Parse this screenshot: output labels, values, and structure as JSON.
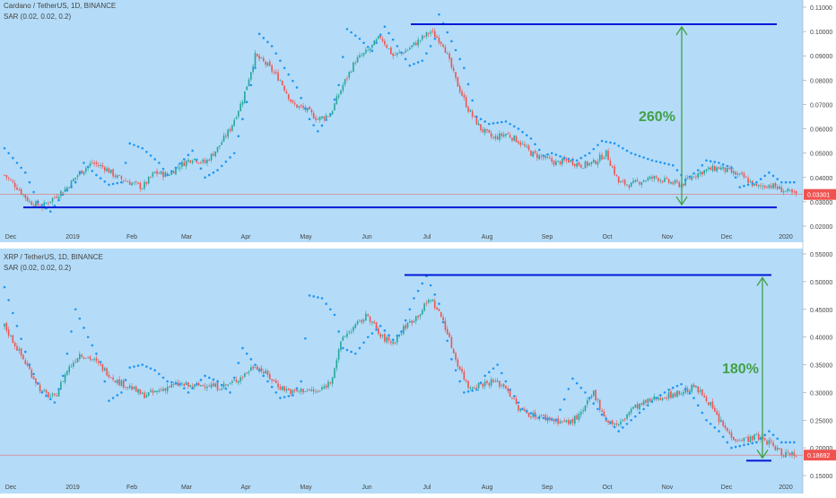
{
  "colors": {
    "panel_bg": "#b4dcf8",
    "separator": "#ffffff",
    "axis_text": "#444444",
    "up": "#26a69a",
    "down": "#ef5350",
    "sar": "#2196f3",
    "range_line": "#0018d8",
    "arrow": "#43a047",
    "price_line": "#ef5350",
    "price_badge": "#ef5350"
  },
  "time_axis": [
    "Dec",
    "2019",
    "Feb",
    "Mar",
    "Apr",
    "May",
    "Jun",
    "Jul",
    "Aug",
    "Sep",
    "Oct",
    "Nov",
    "Dec",
    "2020"
  ],
  "chart_data": [
    {
      "type": "candlestick",
      "symbol_title": "Cardano / TetherUS, 1D, BINANCE",
      "indicator": "SAR (0.02, 0.02, 0.2)",
      "y_ticks": [
        "0.11000",
        "0.10000",
        "0.09000",
        "0.08000",
        "0.07000",
        "0.06000",
        "0.05000",
        "0.04000",
        "0.03000",
        "0.02000"
      ],
      "ylim": [
        0.02,
        0.11
      ],
      "last_price": "0.03301",
      "last_price_value": 0.03301,
      "range_high": 0.103,
      "range_low": 0.0277,
      "range_label": "260%",
      "close_path": [
        [
          0,
          0.041
        ],
        [
          6,
          0.036
        ],
        [
          12,
          0.03
        ],
        [
          18,
          0.028
        ],
        [
          24,
          0.032
        ],
        [
          30,
          0.036
        ],
        [
          36,
          0.042
        ],
        [
          42,
          0.046
        ],
        [
          48,
          0.044
        ],
        [
          54,
          0.04
        ],
        [
          60,
          0.038
        ],
        [
          66,
          0.036
        ],
        [
          72,
          0.042
        ],
        [
          78,
          0.041
        ],
        [
          84,
          0.045
        ],
        [
          90,
          0.048
        ],
        [
          96,
          0.046
        ],
        [
          102,
          0.052
        ],
        [
          108,
          0.06
        ],
        [
          114,
          0.072
        ],
        [
          120,
          0.09
        ],
        [
          126,
          0.086
        ],
        [
          132,
          0.08
        ],
        [
          138,
          0.07
        ],
        [
          144,
          0.068
        ],
        [
          150,
          0.064
        ],
        [
          156,
          0.066
        ],
        [
          162,
          0.078
        ],
        [
          168,
          0.088
        ],
        [
          174,
          0.092
        ],
        [
          180,
          0.098
        ],
        [
          186,
          0.09
        ],
        [
          192,
          0.092
        ],
        [
          198,
          0.096
        ],
        [
          204,
          0.1
        ],
        [
          210,
          0.095
        ],
        [
          216,
          0.08
        ],
        [
          222,
          0.068
        ],
        [
          228,
          0.06
        ],
        [
          234,
          0.056
        ],
        [
          240,
          0.058
        ],
        [
          246,
          0.055
        ],
        [
          252,
          0.05
        ],
        [
          258,
          0.048
        ],
        [
          264,
          0.046
        ],
        [
          270,
          0.047
        ],
        [
          276,
          0.045
        ],
        [
          282,
          0.046
        ],
        [
          288,
          0.05
        ],
        [
          294,
          0.038
        ],
        [
          300,
          0.037
        ],
        [
          306,
          0.039
        ],
        [
          312,
          0.04
        ],
        [
          318,
          0.038
        ],
        [
          324,
          0.037
        ],
        [
          330,
          0.041
        ],
        [
          336,
          0.043
        ],
        [
          342,
          0.044
        ],
        [
          348,
          0.042
        ],
        [
          354,
          0.04
        ],
        [
          360,
          0.036
        ],
        [
          366,
          0.037
        ],
        [
          372,
          0.035
        ],
        [
          378,
          0.033
        ]
      ],
      "sar_path": [
        [
          0,
          0.052
        ],
        [
          10,
          0.042
        ],
        [
          16,
          0.03
        ],
        [
          22,
          0.026
        ],
        [
          28,
          0.033
        ],
        [
          34,
          0.038
        ],
        [
          38,
          0.046
        ],
        [
          44,
          0.041
        ],
        [
          50,
          0.037
        ],
        [
          56,
          0.038
        ],
        [
          60,
          0.054
        ],
        [
          66,
          0.052
        ],
        [
          74,
          0.046
        ],
        [
          78,
          0.041
        ],
        [
          82,
          0.044
        ],
        [
          90,
          0.051
        ],
        [
          96,
          0.04
        ],
        [
          102,
          0.043
        ],
        [
          110,
          0.05
        ],
        [
          114,
          0.064
        ],
        [
          120,
          0.085
        ],
        [
          122,
          0.099
        ],
        [
          128,
          0.094
        ],
        [
          134,
          0.085
        ],
        [
          140,
          0.077
        ],
        [
          146,
          0.064
        ],
        [
          150,
          0.059
        ],
        [
          156,
          0.066
        ],
        [
          160,
          0.078
        ],
        [
          164,
          0.101
        ],
        [
          170,
          0.097
        ],
        [
          176,
          0.092
        ],
        [
          182,
          0.102
        ],
        [
          188,
          0.094
        ],
        [
          194,
          0.086
        ],
        [
          200,
          0.088
        ],
        [
          206,
          0.097
        ],
        [
          208,
          0.107
        ],
        [
          214,
          0.096
        ],
        [
          220,
          0.085
        ],
        [
          226,
          0.065
        ],
        [
          232,
          0.062
        ],
        [
          240,
          0.063
        ],
        [
          246,
          0.06
        ],
        [
          252,
          0.056
        ],
        [
          258,
          0.049
        ],
        [
          262,
          0.05
        ],
        [
          268,
          0.048
        ],
        [
          274,
          0.047
        ],
        [
          280,
          0.05
        ],
        [
          286,
          0.055
        ],
        [
          292,
          0.054
        ],
        [
          300,
          0.05
        ],
        [
          310,
          0.047
        ],
        [
          320,
          0.045
        ],
        [
          326,
          0.039
        ],
        [
          332,
          0.043
        ],
        [
          336,
          0.047
        ],
        [
          342,
          0.046
        ],
        [
          348,
          0.044
        ],
        [
          352,
          0.036
        ],
        [
          360,
          0.038
        ],
        [
          366,
          0.042
        ],
        [
          372,
          0.038
        ]
      ]
    },
    {
      "type": "candlestick",
      "symbol_title": "XRP / TetherUS, 1D, BINANCE",
      "indicator": "SAR (0.02, 0.02, 0.2)",
      "y_ticks": [
        "0.55000",
        "0.50000",
        "0.45000",
        "0.40000",
        "0.35000",
        "0.30000",
        "0.25000",
        "0.20000",
        "0.15000"
      ],
      "ylim": [
        0.15,
        0.55
      ],
      "last_price": "0.18692",
      "last_price_value": 0.18692,
      "range_high": 0.512,
      "range_low": 0.177,
      "range_label": "180%",
      "close_path": [
        [
          0,
          0.42
        ],
        [
          6,
          0.38
        ],
        [
          12,
          0.34
        ],
        [
          18,
          0.3
        ],
        [
          24,
          0.29
        ],
        [
          30,
          0.34
        ],
        [
          36,
          0.37
        ],
        [
          42,
          0.36
        ],
        [
          48,
          0.34
        ],
        [
          54,
          0.32
        ],
        [
          60,
          0.31
        ],
        [
          66,
          0.295
        ],
        [
          72,
          0.3
        ],
        [
          78,
          0.31
        ],
        [
          84,
          0.315
        ],
        [
          90,
          0.31
        ],
        [
          96,
          0.315
        ],
        [
          102,
          0.31
        ],
        [
          108,
          0.315
        ],
        [
          114,
          0.33
        ],
        [
          120,
          0.35
        ],
        [
          126,
          0.33
        ],
        [
          132,
          0.31
        ],
        [
          138,
          0.3
        ],
        [
          144,
          0.305
        ],
        [
          150,
          0.3
        ],
        [
          156,
          0.32
        ],
        [
          162,
          0.4
        ],
        [
          168,
          0.42
        ],
        [
          174,
          0.44
        ],
        [
          180,
          0.4
        ],
        [
          186,
          0.39
        ],
        [
          192,
          0.42
        ],
        [
          198,
          0.44
        ],
        [
          204,
          0.47
        ],
        [
          210,
          0.43
        ],
        [
          216,
          0.36
        ],
        [
          222,
          0.31
        ],
        [
          228,
          0.315
        ],
        [
          234,
          0.32
        ],
        [
          240,
          0.31
        ],
        [
          246,
          0.27
        ],
        [
          252,
          0.26
        ],
        [
          258,
          0.255
        ],
        [
          264,
          0.25
        ],
        [
          270,
          0.245
        ],
        [
          276,
          0.26
        ],
        [
          282,
          0.3
        ],
        [
          288,
          0.25
        ],
        [
          294,
          0.24
        ],
        [
          300,
          0.27
        ],
        [
          306,
          0.28
        ],
        [
          312,
          0.29
        ],
        [
          318,
          0.295
        ],
        [
          324,
          0.3
        ],
        [
          330,
          0.31
        ],
        [
          336,
          0.29
        ],
        [
          342,
          0.25
        ],
        [
          348,
          0.22
        ],
        [
          354,
          0.215
        ],
        [
          360,
          0.22
        ],
        [
          366,
          0.21
        ],
        [
          372,
          0.19
        ]
      ],
      "sar_path": [
        [
          0,
          0.49
        ],
        [
          6,
          0.42
        ],
        [
          12,
          0.35
        ],
        [
          18,
          0.3
        ],
        [
          24,
          0.282
        ],
        [
          28,
          0.33
        ],
        [
          34,
          0.45
        ],
        [
          40,
          0.4
        ],
        [
          46,
          0.355
        ],
        [
          50,
          0.285
        ],
        [
          56,
          0.3
        ],
        [
          60,
          0.345
        ],
        [
          66,
          0.35
        ],
        [
          72,
          0.34
        ],
        [
          78,
          0.32
        ],
        [
          84,
          0.315
        ],
        [
          88,
          0.3
        ],
        [
          96,
          0.33
        ],
        [
          102,
          0.32
        ],
        [
          108,
          0.3
        ],
        [
          114,
          0.38
        ],
        [
          120,
          0.35
        ],
        [
          126,
          0.32
        ],
        [
          132,
          0.29
        ],
        [
          138,
          0.295
        ],
        [
          142,
          0.32
        ],
        [
          146,
          0.475
        ],
        [
          152,
          0.47
        ],
        [
          158,
          0.44
        ],
        [
          162,
          0.38
        ],
        [
          168,
          0.37
        ],
        [
          174,
          0.4
        ],
        [
          180,
          0.42
        ],
        [
          186,
          0.395
        ],
        [
          190,
          0.41
        ],
        [
          196,
          0.47
        ],
        [
          202,
          0.51
        ],
        [
          208,
          0.46
        ],
        [
          214,
          0.36
        ],
        [
          220,
          0.3
        ],
        [
          226,
          0.305
        ],
        [
          230,
          0.33
        ],
        [
          236,
          0.35
        ],
        [
          242,
          0.305
        ],
        [
          248,
          0.27
        ],
        [
          256,
          0.255
        ],
        [
          264,
          0.25
        ],
        [
          272,
          0.325
        ],
        [
          278,
          0.3
        ],
        [
          286,
          0.26
        ],
        [
          294,
          0.23
        ],
        [
          300,
          0.25
        ],
        [
          306,
          0.27
        ],
        [
          312,
          0.29
        ],
        [
          318,
          0.305
        ],
        [
          324,
          0.315
        ],
        [
          330,
          0.29
        ],
        [
          336,
          0.25
        ],
        [
          342,
          0.23
        ],
        [
          348,
          0.2
        ],
        [
          354,
          0.205
        ],
        [
          360,
          0.21
        ],
        [
          366,
          0.23
        ],
        [
          372,
          0.21
        ]
      ]
    }
  ]
}
